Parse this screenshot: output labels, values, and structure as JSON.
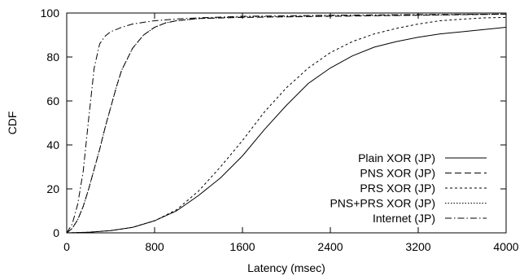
{
  "chart_data": {
    "type": "line",
    "title": "",
    "xlabel": "Latency (msec)",
    "ylabel": "CDF",
    "xlim": [
      0,
      4000
    ],
    "ylim": [
      0,
      100
    ],
    "xticks": [
      0,
      800,
      1600,
      2400,
      3200,
      4000
    ],
    "yticks": [
      0,
      20,
      40,
      60,
      80,
      100
    ],
    "grid": false,
    "legend_position": "bottom-right",
    "series": [
      {
        "name": "Plain XOR (JP)",
        "style": "solid",
        "points": [
          [
            0,
            0
          ],
          [
            200,
            0.3
          ],
          [
            400,
            1
          ],
          [
            600,
            2.5
          ],
          [
            800,
            5.5
          ],
          [
            1000,
            10
          ],
          [
            1200,
            17
          ],
          [
            1400,
            25
          ],
          [
            1600,
            35
          ],
          [
            1800,
            47
          ],
          [
            2000,
            58
          ],
          [
            2200,
            68
          ],
          [
            2400,
            75
          ],
          [
            2600,
            80.5
          ],
          [
            2800,
            84.5
          ],
          [
            3000,
            87
          ],
          [
            3200,
            89
          ],
          [
            3400,
            90.5
          ],
          [
            3600,
            91.5
          ],
          [
            3800,
            92.5
          ],
          [
            4000,
            93.5
          ]
        ]
      },
      {
        "name": "PNS XOR (JP)",
        "style": "dashed",
        "points": [
          [
            0,
            0
          ],
          [
            50,
            2
          ],
          [
            100,
            6
          ],
          [
            150,
            12
          ],
          [
            200,
            20
          ],
          [
            250,
            29
          ],
          [
            300,
            38
          ],
          [
            350,
            48
          ],
          [
            400,
            57
          ],
          [
            450,
            66
          ],
          [
            500,
            74
          ],
          [
            600,
            84
          ],
          [
            700,
            90
          ],
          [
            800,
            93.5
          ],
          [
            900,
            95.5
          ],
          [
            1000,
            96.5
          ],
          [
            1200,
            97.5
          ],
          [
            1600,
            98
          ],
          [
            2400,
            98.5
          ],
          [
            3200,
            99
          ],
          [
            4000,
            99.5
          ]
        ]
      },
      {
        "name": "PRS XOR (JP)",
        "style": "dotted-short",
        "points": [
          [
            0,
            0
          ],
          [
            200,
            0.3
          ],
          [
            400,
            1
          ],
          [
            600,
            2.5
          ],
          [
            800,
            5.5
          ],
          [
            1000,
            10.5
          ],
          [
            1200,
            19
          ],
          [
            1400,
            30
          ],
          [
            1600,
            42
          ],
          [
            1800,
            55
          ],
          [
            2000,
            66
          ],
          [
            2200,
            75
          ],
          [
            2400,
            82
          ],
          [
            2600,
            87
          ],
          [
            2800,
            90.5
          ],
          [
            3000,
            93
          ],
          [
            3200,
            95
          ],
          [
            3400,
            96.5
          ],
          [
            3600,
            97.2
          ],
          [
            3800,
            97.8
          ],
          [
            4000,
            98
          ]
        ]
      },
      {
        "name": "PNS+PRS XOR (JP)",
        "style": "dotted",
        "points": [
          [
            0,
            0
          ],
          [
            50,
            2
          ],
          [
            100,
            6
          ],
          [
            150,
            12
          ],
          [
            200,
            20
          ],
          [
            250,
            29
          ],
          [
            300,
            38
          ],
          [
            350,
            48
          ],
          [
            400,
            57
          ],
          [
            450,
            66
          ],
          [
            500,
            74
          ],
          [
            600,
            84
          ],
          [
            700,
            90
          ],
          [
            800,
            93.5
          ],
          [
            900,
            95.5
          ],
          [
            1000,
            96.5
          ],
          [
            1200,
            97.5
          ],
          [
            1600,
            98.2
          ],
          [
            2400,
            98.7
          ],
          [
            3200,
            99
          ],
          [
            4000,
            99.5
          ]
        ]
      },
      {
        "name": "Internet (JP)",
        "style": "dash-dot",
        "points": [
          [
            0,
            0
          ],
          [
            50,
            4
          ],
          [
            100,
            13
          ],
          [
            150,
            28
          ],
          [
            200,
            52
          ],
          [
            250,
            75
          ],
          [
            300,
            86
          ],
          [
            350,
            89.5
          ],
          [
            400,
            91.5
          ],
          [
            500,
            93.5
          ],
          [
            600,
            95
          ],
          [
            800,
            96.5
          ],
          [
            1000,
            97.3
          ],
          [
            1200,
            97.8
          ],
          [
            1600,
            98.5
          ],
          [
            2400,
            99
          ],
          [
            3200,
            99.3
          ],
          [
            4000,
            99.5
          ]
        ]
      }
    ]
  }
}
